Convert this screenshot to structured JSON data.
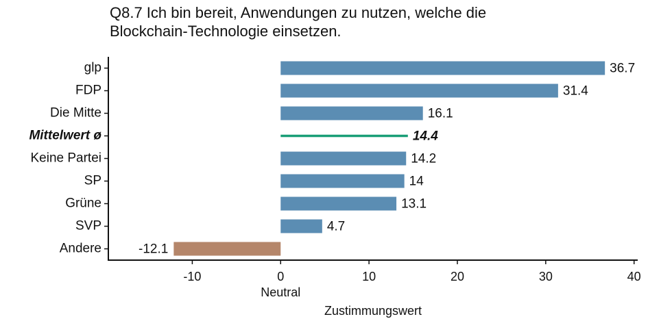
{
  "chart_data": {
    "type": "hbar",
    "title": [
      "Q8.7 Ich bin bereit, Anwendungen zu nutzen, welche die",
      "Blockchain-Technologie einsetzen."
    ],
    "categories": [
      "glp",
      "FDP",
      "Die Mitte",
      "Mittelwert ø",
      "Keine Partei",
      "SP",
      "Grüne",
      "SVP",
      "Andere"
    ],
    "values": [
      36.7,
      31.4,
      16.1,
      14.4,
      14.2,
      14,
      13.1,
      4.7,
      -12.1
    ],
    "colors": [
      "#5b8db3",
      "#5b8db3",
      "#5b8db3",
      "#1a9e77",
      "#5b8db3",
      "#5b8db3",
      "#5b8db3",
      "#5b8db3",
      "#b5866a"
    ],
    "marks": [
      "bar",
      "bar",
      "bar",
      "line",
      "bar",
      "bar",
      "bar",
      "bar",
      "bar"
    ],
    "xlim": [
      -19.5,
      40.8
    ],
    "xticks": [
      -10,
      0,
      10,
      20,
      30,
      40
    ],
    "zero_annotation": "Neutral",
    "x_label": "Zustimmungswert"
  }
}
